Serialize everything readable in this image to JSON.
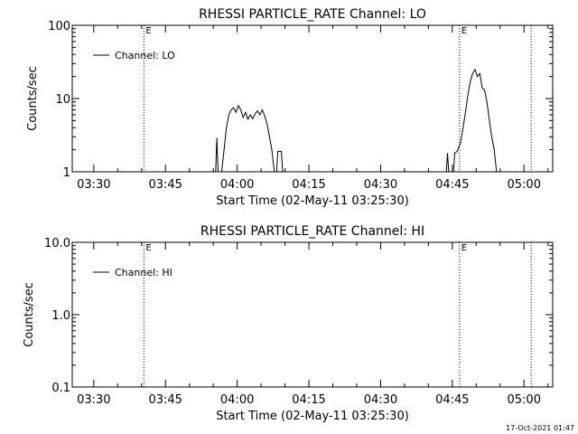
{
  "footer_timestamp": "17-Oct-2021 01:47",
  "chart_data": [
    {
      "type": "line",
      "title": "RHESSI PARTICLE_RATE Channel: LO",
      "xlabel": "Start Time (02-May-11 03:25:30)",
      "ylabel": "Counts/sec",
      "yscale": "log",
      "xlim": [
        "03:25:30",
        "05:06:00"
      ],
      "ylim": [
        1,
        100
      ],
      "x_ticks": [
        "03:30",
        "03:45",
        "04:00",
        "04:15",
        "04:30",
        "04:45",
        "05:00"
      ],
      "y_ticks": [
        "1",
        "10",
        "100"
      ],
      "grid": false,
      "legend": {
        "position": "top-left",
        "entries": [
          "Channel: LO"
        ]
      },
      "vertical_markers": [
        {
          "x": "03:40:30",
          "label": "E"
        },
        {
          "x": "04:46:30",
          "label": "E"
        },
        {
          "x": "05:01:30",
          "label": ""
        }
      ],
      "series": [
        {
          "name": "Channel: LO",
          "points": [
            [
              "03:55:30",
              1
            ],
            [
              "03:55:45",
              2.9
            ],
            [
              "03:56:00",
              1
            ],
            [
              "03:56:45",
              1
            ],
            [
              "03:57:15",
              2.0
            ],
            [
              "03:57:45",
              4.0
            ],
            [
              "03:58:15",
              6.0
            ],
            [
              "03:58:45",
              7.0
            ],
            [
              "03:59:15",
              7.5
            ],
            [
              "03:59:45",
              6.5
            ],
            [
              "04:00:15",
              8.0
            ],
            [
              "04:00:45",
              7.0
            ],
            [
              "04:01:15",
              5.5
            ],
            [
              "04:01:45",
              6.5
            ],
            [
              "04:02:15",
              5.2
            ],
            [
              "04:02:45",
              6.0
            ],
            [
              "04:03:15",
              5.3
            ],
            [
              "04:03:45",
              6.2
            ],
            [
              "04:04:15",
              6.8
            ],
            [
              "04:04:45",
              6.0
            ],
            [
              "04:05:15",
              7.0
            ],
            [
              "04:05:45",
              5.8
            ],
            [
              "04:06:15",
              4.5
            ],
            [
              "04:06:45",
              3.0
            ],
            [
              "04:07:15",
              2.0
            ],
            [
              "04:07:45",
              1
            ],
            [
              "04:08:15",
              1
            ],
            [
              "04:08:30",
              1.9
            ],
            [
              "04:09:15",
              1.9
            ],
            [
              "04:09:30",
              1
            ],
            [
              "04:43:45",
              1
            ],
            [
              "04:44:00",
              1.8
            ],
            [
              "04:44:15",
              1
            ],
            [
              "04:45:15",
              1
            ],
            [
              "04:45:30",
              1.8
            ],
            [
              "04:46:00",
              1.9
            ],
            [
              "04:46:45",
              2.5
            ],
            [
              "04:47:15",
              4.0
            ],
            [
              "04:47:45",
              6.5
            ],
            [
              "04:48:15",
              11.0
            ],
            [
              "04:48:45",
              17.0
            ],
            [
              "04:49:15",
              22.0
            ],
            [
              "04:49:45",
              25.0
            ],
            [
              "04:50:15",
              20.0
            ],
            [
              "04:50:45",
              22.0
            ],
            [
              "04:51:15",
              14.0
            ],
            [
              "04:51:45",
              13.0
            ],
            [
              "04:52:15",
              9.0
            ],
            [
              "04:52:45",
              5.0
            ],
            [
              "04:53:15",
              3.0
            ],
            [
              "04:53:45",
              2.0
            ],
            [
              "04:54:15",
              1
            ]
          ]
        }
      ]
    },
    {
      "type": "line",
      "title": "RHESSI PARTICLE_RATE Channel: HI",
      "xlabel": "Start Time (02-May-11 03:25:30)",
      "ylabel": "Counts/sec",
      "yscale": "log",
      "xlim": [
        "03:25:30",
        "05:06:00"
      ],
      "ylim": [
        0.1,
        10
      ],
      "x_ticks": [
        "03:30",
        "03:45",
        "04:00",
        "04:15",
        "04:30",
        "04:45",
        "05:00"
      ],
      "y_ticks": [
        "0.1",
        "1.0",
        "10.0"
      ],
      "grid": false,
      "legend": {
        "position": "top-left",
        "entries": [
          "Channel: HI"
        ]
      },
      "vertical_markers": [
        {
          "x": "03:40:30",
          "label": "E"
        },
        {
          "x": "04:46:30",
          "label": "E"
        },
        {
          "x": "05:01:30",
          "label": ""
        }
      ],
      "series": [
        {
          "name": "Channel: HI",
          "points": []
        }
      ]
    }
  ]
}
